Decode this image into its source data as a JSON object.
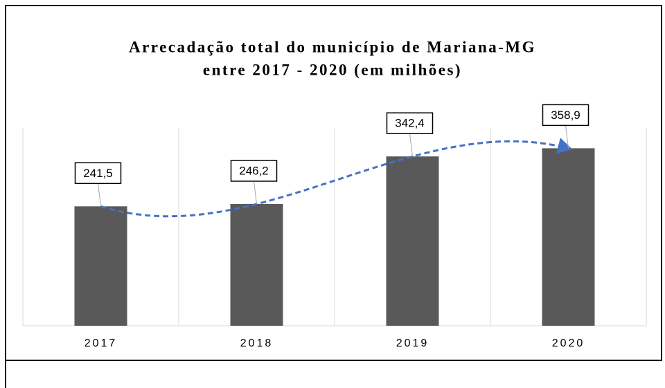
{
  "chart_data": {
    "type": "bar",
    "title": [
      "Arrecadação total do município de Mariana-MG",
      "entre 2017 - 2020 (em milhões)"
    ],
    "categories": [
      "2017",
      "2018",
      "2019",
      "2020"
    ],
    "values": [
      241.5,
      246.2,
      342.4,
      358.9
    ],
    "value_labels": [
      "241,5",
      "246,2",
      "342,4",
      "358,9"
    ],
    "color": "#595959",
    "trend_color": "#4472c4",
    "ylim": [
      0,
      400
    ]
  }
}
